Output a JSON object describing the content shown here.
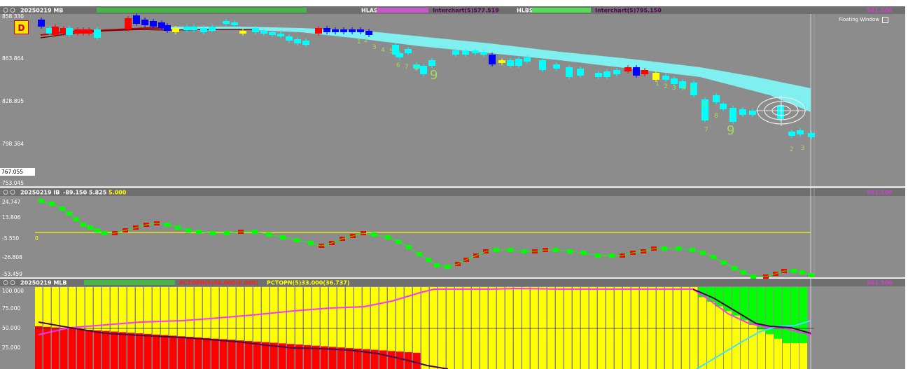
{
  "main_panel": {
    "title": "20250219 MB",
    "indicator_a": "HLAS",
    "indicator_a_params": "Interchart(5)577.519",
    "indicator_b": "HLBS",
    "indicator_b_params": "Interchart(5)795.150",
    "right_tag": "S61.500",
    "axis_ticks": [
      "858.330",
      "863.864",
      "828.895",
      "798.384"
    ],
    "current_price": "767.055",
    "bottom_price": "753.045",
    "floating_window_label": "Floating Window",
    "badge": "D",
    "nine_labels": [
      "9",
      "9"
    ],
    "count_labels_1": [
      "1",
      "2",
      "3",
      "4",
      "5",
      "6",
      "7",
      "8"
    ],
    "count_labels_2": [
      "1",
      "2",
      "3",
      "4",
      "5",
      "6",
      "7",
      "8"
    ],
    "count_labels_3": [
      "2",
      "3"
    ]
  },
  "middle_panel": {
    "title": "20250219 IB",
    "value_1": "-89.150",
    "value_2": "5.825",
    "value_3": "5.000",
    "right_tag": "S61.500",
    "axis_ticks": [
      "24.747",
      "13.806",
      "-5.550",
      "-26.808",
      "-53.459"
    ],
    "zero_label": "0"
  },
  "bottom_panel": {
    "title": "20250219 MLB",
    "legend_red": "PCTOPN(5)50.000(0.000)",
    "legend_yellow": "PCTOPN(5)33.000(36.737)",
    "right_tag": "S61.500",
    "axis_ticks": [
      "100.000",
      "75.000",
      "50.000",
      "25.000"
    ]
  },
  "colors": {
    "background": "#8c8c8c",
    "up_candle": "#00ffff",
    "down_candle": "#0000ff",
    "red_bar": "#ff0000",
    "yellow_bar": "#ffff00",
    "green_bar": "#00ff00",
    "cloud": "#80ffff",
    "magenta": "#ff33ff",
    "dark_line": "#4b004b"
  }
}
